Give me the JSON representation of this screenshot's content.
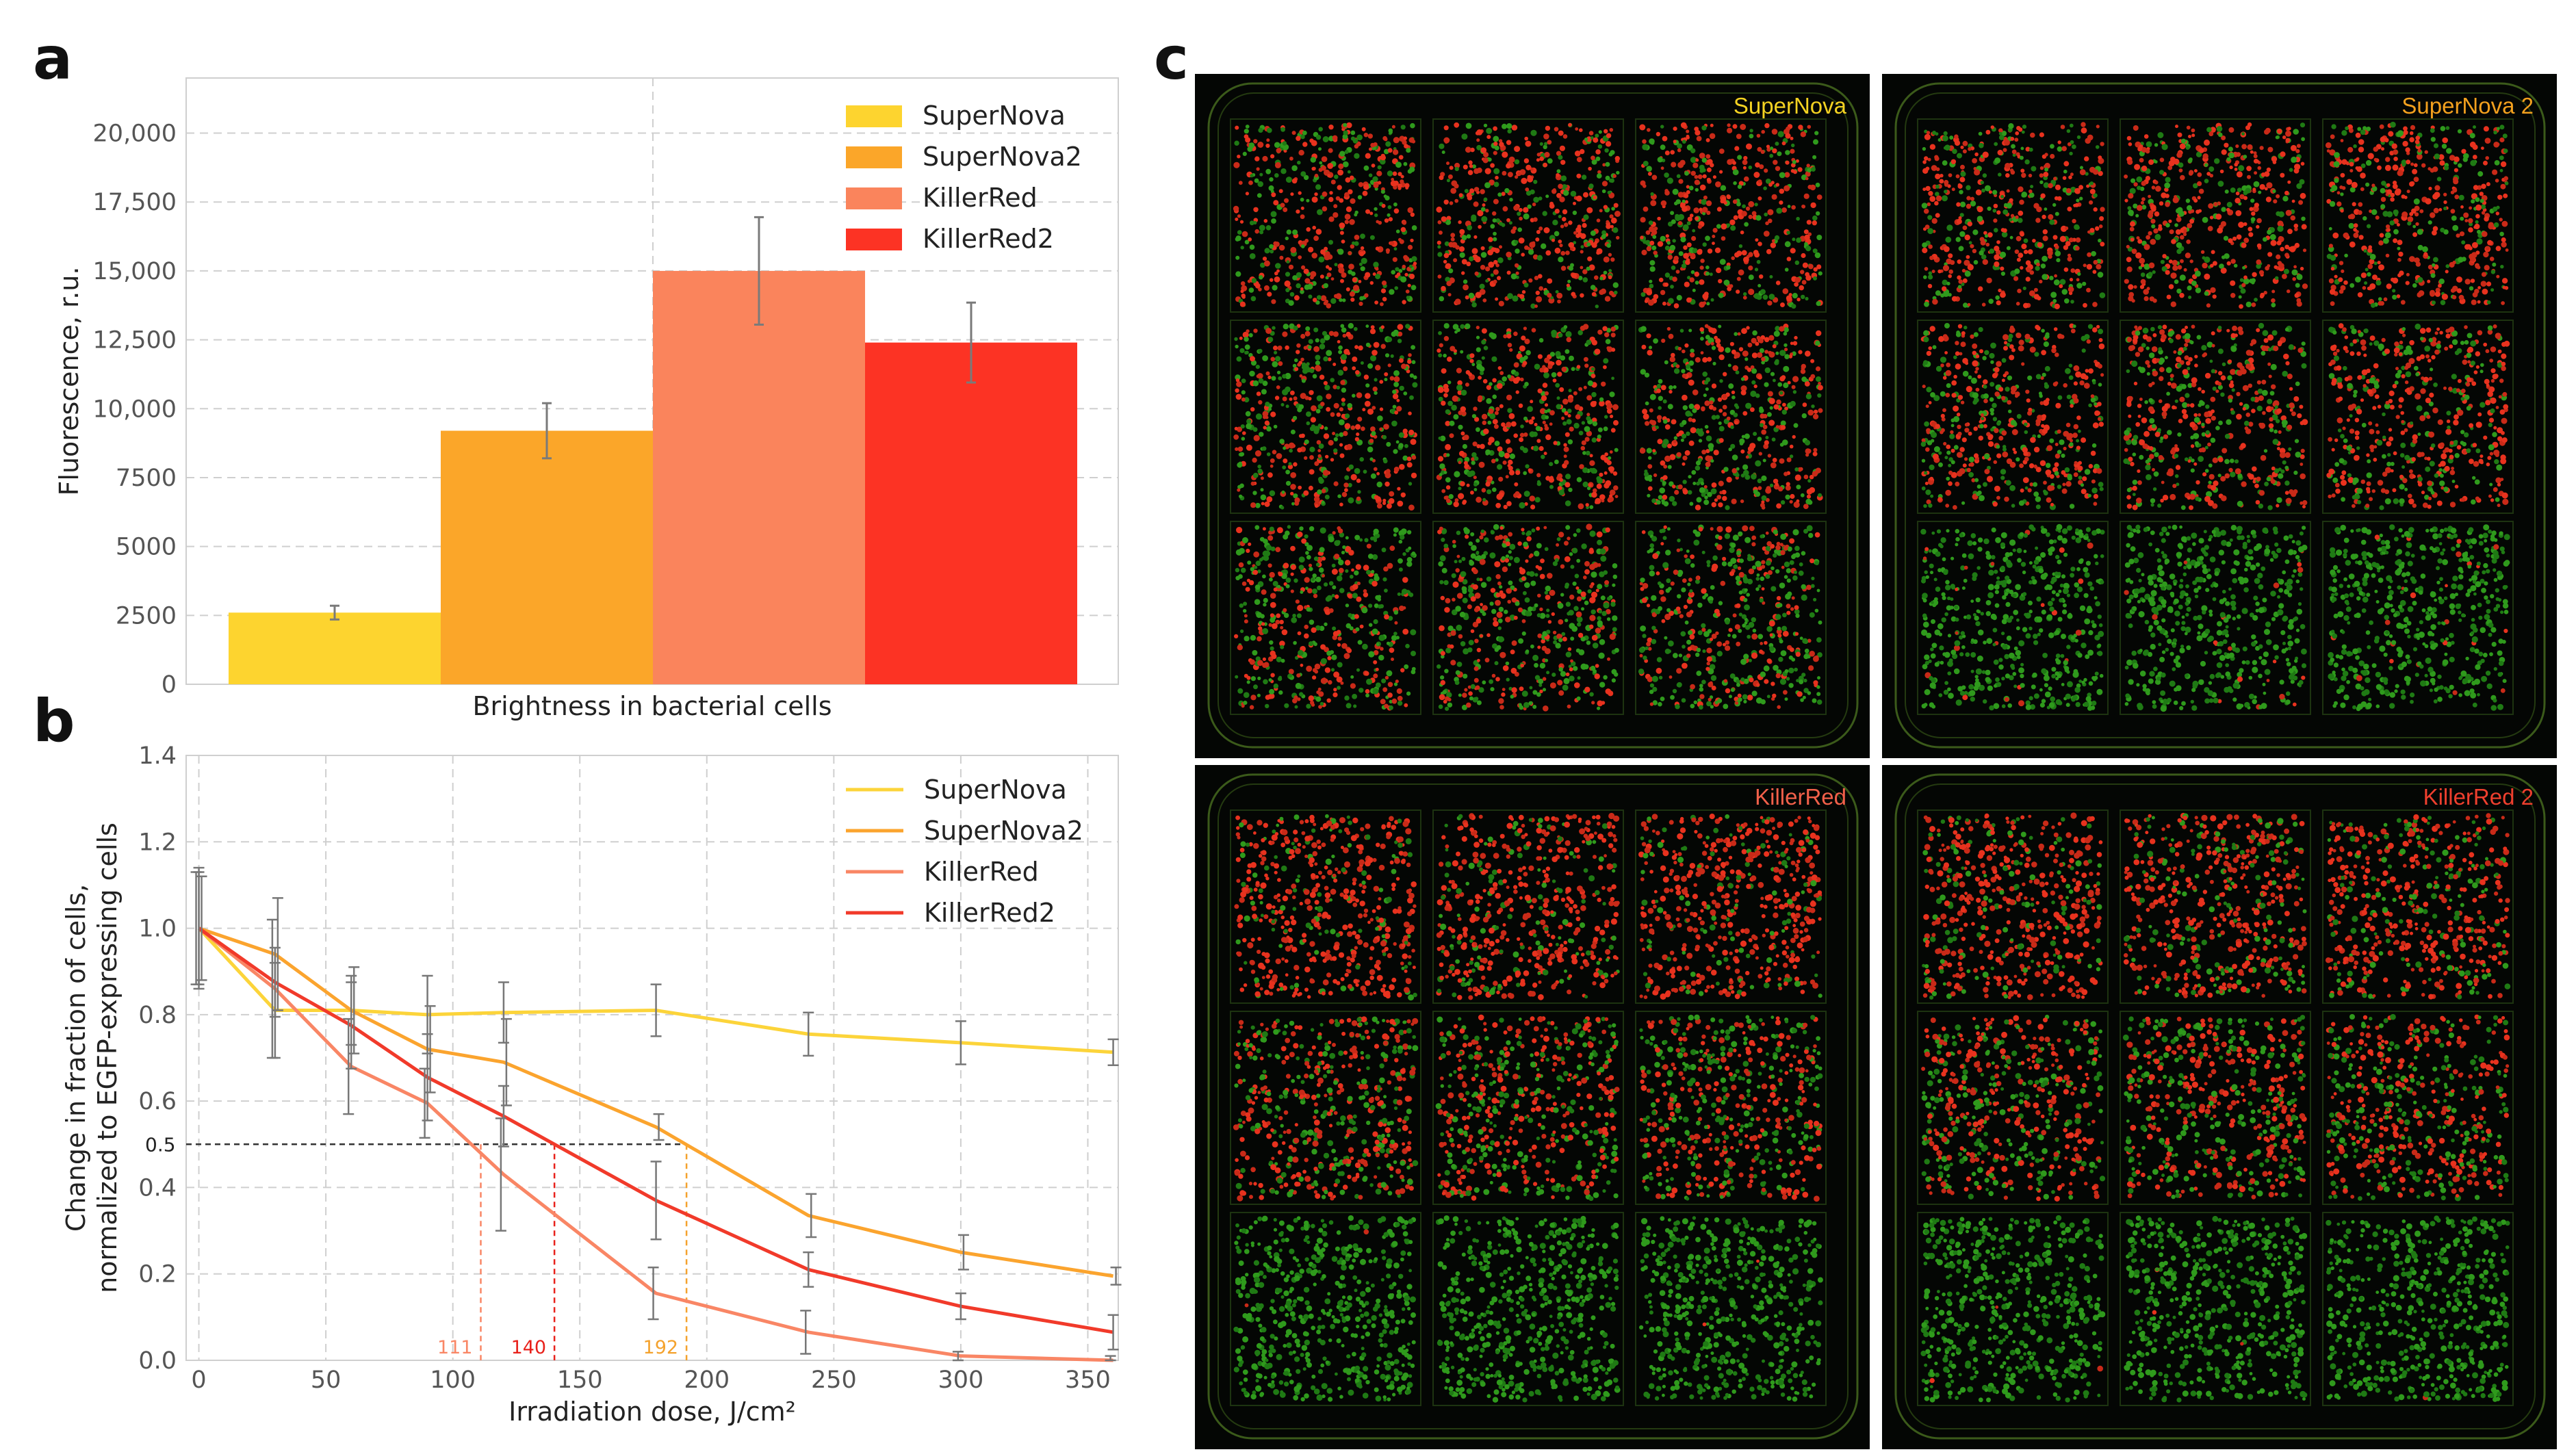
{
  "panels": {
    "a": "a",
    "b": "b",
    "c": "c"
  },
  "chart_data": [
    {
      "type": "bar",
      "panel": "a",
      "title": "",
      "xlabel": "Brightness in bacterial cells",
      "ylabel": "Fluorescence, r.u.",
      "ylim": [
        0,
        22000
      ],
      "yticks": [
        0,
        2500,
        5000,
        7500,
        10000,
        12500,
        15000,
        17500,
        20000
      ],
      "ytick_labels": [
        "0",
        "2500",
        "5000",
        "7500",
        "10,000",
        "12,500",
        "15,000",
        "17,500",
        "20,000"
      ],
      "grid": true,
      "legend_position": "top-right",
      "categories": [
        "SuperNova",
        "SuperNova2",
        "KillerRed",
        "KillerRed2"
      ],
      "values": [
        2600,
        9200,
        15000,
        12400
      ],
      "errors": [
        250,
        1000,
        1950,
        1450
      ],
      "colors": [
        "#FDD42F",
        "#FBA629",
        "#FA845C",
        "#FC3324"
      ]
    },
    {
      "type": "line",
      "panel": "b",
      "title": "",
      "xlabel": "Irradiation dose, J/cm²",
      "ylabel_lines": [
        "Change in fraction of cells,",
        "normalized to EGFP-expressing cells"
      ],
      "xlim": [
        -5,
        362
      ],
      "ylim": [
        0,
        1.4
      ],
      "xticks": [
        0,
        50,
        100,
        150,
        200,
        250,
        300,
        350
      ],
      "xtick_labels": [
        "0",
        "50",
        "100",
        "150",
        "200",
        "250",
        "300",
        "350"
      ],
      "yticks": [
        0,
        0.2,
        0.4,
        0.6,
        0.8,
        1.0,
        1.2,
        1.4
      ],
      "ytick_labels": [
        "0.0",
        "0.2",
        "0.4",
        "0.6",
        "0.8",
        "1.0",
        "1.2",
        "1.4"
      ],
      "grid": true,
      "legend_position": "top-right",
      "x": [
        0,
        30,
        60,
        90,
        120,
        180,
        240,
        300,
        360
      ],
      "series": [
        {
          "name": "SuperNova",
          "color": "#FCD43A",
          "values": [
            1.0,
            0.81,
            0.81,
            0.8,
            0.805,
            0.81,
            0.755,
            0.735,
            0.713
          ],
          "errors": [
            0.14,
            0.11,
            0.08,
            0.09,
            0.07,
            0.06,
            0.05,
            0.05,
            0.03
          ]
        },
        {
          "name": "SuperNova2",
          "color": "#FBA42E",
          "values": [
            1.0,
            0.94,
            0.81,
            0.72,
            0.69,
            0.54,
            0.335,
            0.25,
            0.195
          ],
          "errors": [
            0.12,
            0.13,
            0.1,
            0.1,
            0.1,
            0.03,
            0.05,
            0.04,
            0.02
          ]
        },
        {
          "name": "KillerRed",
          "color": "#F98665",
          "values": [
            1.0,
            0.86,
            0.68,
            0.595,
            0.43,
            0.155,
            0.065,
            0.01,
            0.0
          ],
          "errors": [
            0.13,
            0.16,
            0.11,
            0.08,
            0.13,
            0.06,
            0.05,
            0.01,
            0.01
          ]
        },
        {
          "name": "KillerRed2",
          "color": "#F13A2A",
          "values": [
            1.0,
            0.875,
            0.775,
            0.655,
            0.565,
            0.37,
            0.21,
            0.125,
            0.065
          ],
          "errors": [
            0.13,
            0.08,
            0.1,
            0.1,
            0.07,
            0.09,
            0.04,
            0.03,
            0.04
          ]
        }
      ],
      "reference_line": {
        "y": 0.5,
        "label": "0.5"
      },
      "markers": [
        {
          "x": 111,
          "label": "111",
          "color": "#F98665"
        },
        {
          "x": 140,
          "label": "140",
          "color": "#E8211B"
        },
        {
          "x": 192,
          "label": "192",
          "color": "#F4A22D"
        }
      ]
    }
  ],
  "microscopy": {
    "panels": [
      {
        "label": "SuperNova",
        "color": "#F4D222",
        "red_rows": [
          0.62,
          0.55,
          0.42
        ]
      },
      {
        "label": "SuperNova 2",
        "color": "#F3A01E",
        "red_rows": [
          0.66,
          0.6,
          0.04
        ]
      },
      {
        "label": "KillerRed",
        "color": "#F2604A",
        "red_rows": [
          0.78,
          0.5,
          0.01
        ]
      },
      {
        "label": "KillerRed 2",
        "color": "#EE3F2E",
        "red_rows": [
          0.72,
          0.5,
          0.01
        ]
      }
    ]
  }
}
